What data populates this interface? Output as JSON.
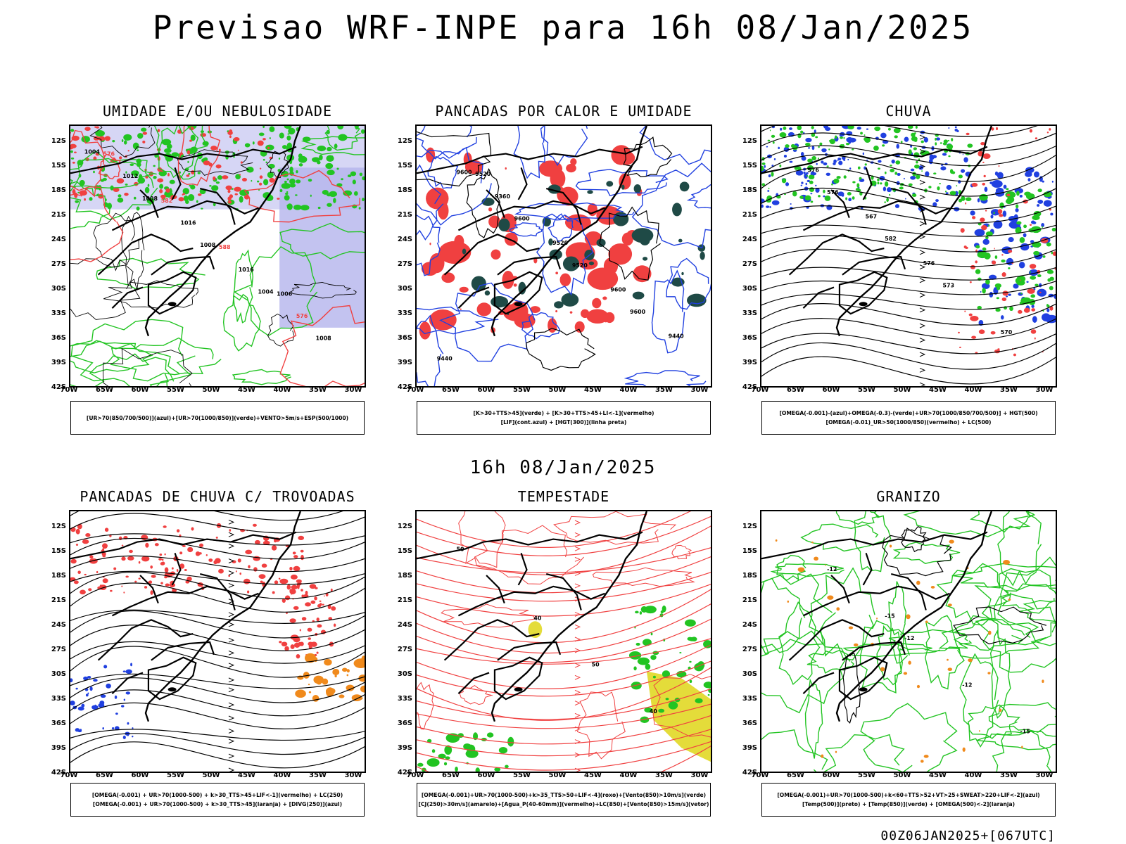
{
  "title": "Previsao WRF-INPE  para 16h 08/Jan/2025",
  "mid_time": "16h 08/Jan/2025",
  "footer": "00Z06JAN2025+[067UTC]",
  "lat_labels": [
    "12S",
    "15S",
    "18S",
    "21S",
    "24S",
    "27S",
    "30S",
    "33S",
    "36S",
    "39S",
    "42S"
  ],
  "lon_labels": [
    "70W",
    "65W",
    "60W",
    "55W",
    "50W",
    "45W",
    "40W",
    "35W",
    "30W"
  ],
  "panels": [
    {
      "title": "UMIDADE E/OU NEBULOSIDADE",
      "legend": [
        "[UR>70(850/700/500)](azul)+[UR>70(1000/850)](verde)+VENTO>5m/s+ESP(500/1000)"
      ],
      "contour_labels": [
        "1004",
        "1008",
        "1008",
        "1004",
        "1008",
        "1012",
        "1016",
        "1016",
        "576",
        "576",
        "582",
        "588",
        "1006"
      ]
    },
    {
      "title": "PANCADAS POR CALOR E UMIDADE",
      "legend": [
        "[K>30+TTS>45](verde) + [K>30+TTS>45+LI<-1](vermelho)",
        "[LIF](cont.azul) + [HGT(300)](linha preta)"
      ],
      "contour_labels": [
        "9600",
        "9600",
        "9520",
        "9600",
        "9440",
        "9360",
        "9520",
        "9600",
        "9440",
        "9520"
      ]
    },
    {
      "title": "CHUVA",
      "legend": [
        "[OMEGA(-0.001)-(azul)+OMEGA(-0.3)-(verde)+UR>70(1000/850/700/500)] + HGT(500)",
        "[OMEGA(-0.01)_UR>50(1000/850)(vermelho) + LC(500)"
      ],
      "contour_labels": [
        "576",
        "582",
        "573",
        "570",
        "576",
        "567",
        "576"
      ]
    },
    {
      "title": "PANCADAS DE CHUVA C/ TROVOADAS",
      "legend": [
        "[OMEGA(-0.001) + UR>70(1000-500) + k>30_TTS>45+LIF<-1](vermelho) + LC(250)",
        "[OMEGA(-0.001) + UR>70(1000-500) + k>30_TTS>45](laranja) + [DIVG(250)](azul)"
      ],
      "contour_labels": []
    },
    {
      "title": "TEMPESTADE",
      "legend": [
        "[OMEGA(-0.001)+UR>70(1000-500)+k>35_TTS>50+LIF<-4](roxo)+[Vento(850)>10m/s](verde)",
        "[CJ(250)>30m/s](amarelo)+[Agua_P(40-60mm)](vermelho)+LC(850)+[Vento(850)>15m/s](vetor)"
      ],
      "contour_labels": [
        "40",
        "50",
        "40",
        "50"
      ]
    },
    {
      "title": "GRANIZO",
      "legend": [
        "[OMEGA(-0.001)+UR>70(1000-500)+k<60+TTS>52+VT>25+SWEAT>220+LIF<-2](azul)",
        "[Temp(500)](preto) + [Temp(850)](verde) + [OMEGA(500)<-2](laranja)"
      ],
      "contour_labels": [
        "-12",
        "-12",
        "-15",
        "-12",
        "-15"
      ]
    }
  ],
  "colors": {
    "red": "#f04040",
    "green": "#22c422",
    "blue": "#2040e0",
    "lavender": "#b4b4ec",
    "dark_teal": "#1f4a46",
    "yellow": "#e4dc3a",
    "orange": "#f08a1c"
  }
}
